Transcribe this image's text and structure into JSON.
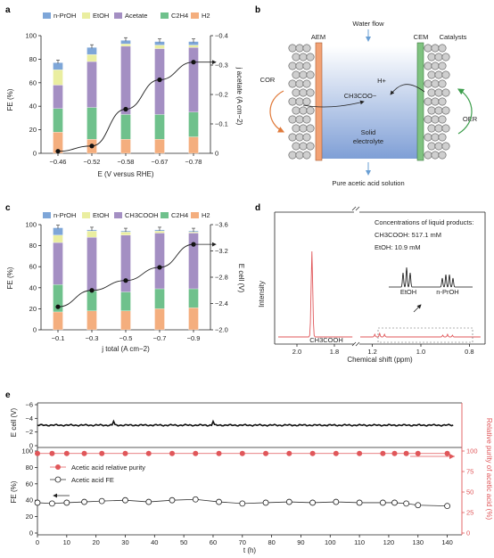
{
  "panels": {
    "a": "a",
    "b": "b",
    "c": "c",
    "d": "d",
    "e": "e"
  },
  "colors": {
    "nprop": "#7ea6d8",
    "etoh": "#eaeea0",
    "acetate": "#a48fc3",
    "c2h4": "#6fc18c",
    "h2": "#f4ae7e",
    "red": "#e0575a",
    "cem": "#7fc380",
    "aem": "#f2a275",
    "arrow_orange": "#e07a3a",
    "arrow_green": "#3d9e4c"
  },
  "chart_data": [
    {
      "id": "a",
      "type": "bar",
      "legend": [
        "n-PrOH",
        "EtOH",
        "Acetate",
        "C2H4",
        "H2"
      ],
      "categories": [
        "−0.46",
        "−0.52",
        "−0.58",
        "−0.67",
        "−0.78"
      ],
      "series": [
        {
          "name": "H2",
          "values": [
            18,
            12,
            12,
            12,
            14
          ]
        },
        {
          "name": "C2H4",
          "values": [
            20,
            27,
            21,
            21,
            21
          ]
        },
        {
          "name": "Acetate",
          "values": [
            20,
            39,
            58,
            56,
            55
          ]
        },
        {
          "name": "EtOH",
          "values": [
            13,
            6,
            2,
            3,
            2
          ]
        },
        {
          "name": "n-PrOH",
          "values": [
            6,
            6,
            3,
            3,
            3
          ]
        }
      ],
      "ylabel": "FE (%)",
      "ylim": [
        0,
        100
      ],
      "yticks": [
        "0",
        "20",
        "40",
        "60",
        "80",
        "100"
      ],
      "xlabel": "E (V versus RHE)",
      "y2label": "j acetate (A cm−2)",
      "y2ticks": [
        "0",
        "−0.1",
        "−0.2",
        "−0.3",
        "−0.4"
      ],
      "y2lim": [
        0,
        -0.4
      ],
      "line": [
        -0.007,
        -0.025,
        -0.15,
        -0.25,
        -0.31
      ]
    },
    {
      "id": "c",
      "type": "bar",
      "legend": [
        "n-PrOH",
        "EtOH",
        "CH3COOH",
        "C2H4",
        "H2"
      ],
      "categories": [
        "−0.1",
        "−0.3",
        "−0.5",
        "−0.7",
        "−0.9"
      ],
      "series": [
        {
          "name": "H2",
          "values": [
            17,
            18,
            18,
            20,
            21
          ]
        },
        {
          "name": "C2H4",
          "values": [
            26,
            19,
            18,
            19,
            18
          ]
        },
        {
          "name": "CH3COOH",
          "values": [
            40,
            51,
            54,
            53,
            53
          ]
        },
        {
          "name": "EtOH",
          "values": [
            7,
            6,
            3,
            2,
            1
          ]
        },
        {
          "name": "n-PrOH",
          "values": [
            7,
            1,
            1,
            1,
            1
          ]
        }
      ],
      "ylabel": "FE (%)",
      "ylim": [
        0,
        100
      ],
      "yticks": [
        "0",
        "20",
        "40",
        "60",
        "80",
        "100"
      ],
      "xlabel": "j total (A cm−2)",
      "y2label": "E cell (V)",
      "y2ticks": [
        "−2.0",
        "−2.4",
        "−2.8",
        "−3.2",
        "−3.6"
      ],
      "y2lim": [
        -2.0,
        -3.6
      ],
      "line": [
        -2.35,
        -2.6,
        -2.75,
        -2.95,
        -3.3
      ]
    },
    {
      "id": "d",
      "type": "line",
      "ylabel": "Intensity",
      "xlabel": "Chemical shift (ppm)",
      "xticks_left": [
        "2.0",
        "1.8"
      ],
      "xticks_right": [
        "1.2",
        "1.0",
        "0.8"
      ],
      "peak_label": "CH3COOH",
      "peak_ppm": 1.92,
      "small_labels": [
        "EtOH",
        "n-PrOH"
      ],
      "conc_title": "Concentrations of liquid products:",
      "conc_lines": [
        "CH3COOH: 517.1 mM",
        "EtOH: 10.9 mM"
      ]
    },
    {
      "id": "e",
      "type": "line",
      "xlabel": "t (h)",
      "xlim": [
        0,
        145
      ],
      "xticks": [
        "0",
        "10",
        "20",
        "30",
        "40",
        "50",
        "60",
        "70",
        "80",
        "90",
        "100",
        "110",
        "120",
        "130",
        "140"
      ],
      "top": {
        "ylabel": "E cell (V)",
        "yticks": [
          "−6",
          "−4",
          "−2",
          "0"
        ],
        "ylim": [
          0,
          -6
        ],
        "value": -3.0
      },
      "bottom": {
        "ylabel": "FE (%)",
        "yticks": [
          "0",
          "20",
          "40",
          "60",
          "80",
          "100"
        ],
        "y2label": "Relative purity of acetic acid (%)",
        "y2ticks": [
          "0",
          "25",
          "50",
          "75",
          "100"
        ],
        "t": [
          0,
          5,
          10,
          16,
          22,
          30,
          38,
          46,
          54,
          62,
          70,
          78,
          86,
          94,
          102,
          110,
          118,
          122,
          126,
          130,
          140
        ],
        "fe": [
          37,
          36,
          37,
          38,
          39,
          40,
          38,
          40,
          41,
          38,
          36,
          37,
          38,
          37,
          38,
          37,
          37,
          37,
          36,
          34,
          33
        ],
        "purity": [
          97,
          97,
          97,
          97,
          97,
          97,
          97,
          97,
          97,
          97,
          97,
          97,
          97,
          97,
          97,
          97,
          97,
          97,
          97,
          97,
          97
        ],
        "legend": [
          "Acetic acid relative purity",
          "Acetic acid FE"
        ]
      }
    }
  ],
  "diagram_b": {
    "water_flow": "Water flow",
    "aem": "AEM",
    "cem": "CEM",
    "catalysts": "Catalysts",
    "cor": "COR",
    "oer": "OER",
    "hplus": "H+",
    "acetate_ion": "CH3COO−",
    "solid1": "Solid",
    "solid2": "electrolyte",
    "output": "Pure acetic acid solution"
  }
}
